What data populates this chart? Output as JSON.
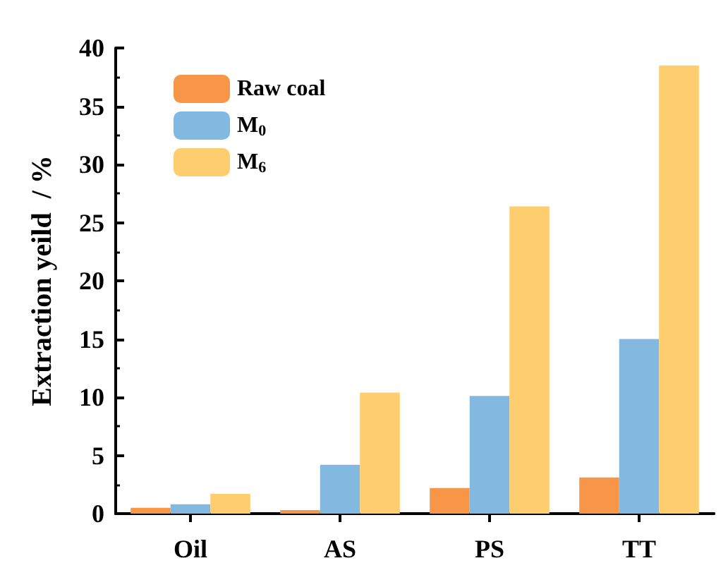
{
  "chart_data": {
    "type": "bar",
    "ylabel": "Extraction yeild  / %",
    "categories": [
      "Oil",
      "AS",
      "PS",
      "TT"
    ],
    "series": [
      {
        "name": "Raw coal",
        "color": "#f79646",
        "values": [
          0.5,
          0.3,
          2.2,
          3.1
        ]
      },
      {
        "name": "M$_{0}$",
        "color": "#83b9e1",
        "values": [
          0.8,
          4.2,
          10.1,
          15.0
        ]
      },
      {
        "name": "M$_{6}$",
        "color": "#fecd6e",
        "values": [
          1.7,
          10.4,
          26.4,
          38.5
        ]
      }
    ],
    "ylim": [
      0,
      40
    ],
    "yticks": [
      0,
      5,
      10,
      15,
      20,
      25,
      30,
      35,
      40
    ],
    "legend": "top left",
    "grid": false
  }
}
